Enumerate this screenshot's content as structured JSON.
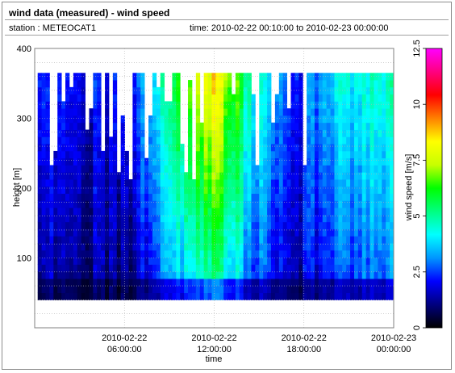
{
  "header": {
    "title": "wind data (measured) - wind speed",
    "station": "station : METEOCAT1",
    "timerange": "time: 2010-02-22 00:10:00 to 2010-02-23 00:00:00"
  },
  "chart_data": {
    "type": "heatmap",
    "xlabel": "time",
    "ylabel": "height [m]",
    "colorbar_label": "wind speed [m/s]",
    "xlim": [
      "2010-02-22 00:00:00",
      "2010-02-23 00:00:00"
    ],
    "ylim": [
      0,
      400
    ],
    "clim": [
      0,
      12.5
    ],
    "grid": true,
    "x_ticks": [
      {
        "line1": "2010-02-22",
        "line2": "06:00:00",
        "hour": 6
      },
      {
        "line1": "2010-02-22",
        "line2": "12:00:00",
        "hour": 12
      },
      {
        "line1": "2010-02-22",
        "line2": "18:00:00",
        "hour": 18
      },
      {
        "line1": "2010-02-23",
        "line2": "00:00:00",
        "hour": 24
      }
    ],
    "y_ticks": [
      100,
      200,
      300,
      400
    ],
    "colorbar_ticks": [
      "0",
      "2.5",
      "5",
      "7.5",
      "10",
      "12.5"
    ],
    "colorbar_tick_values": [
      0,
      2.5,
      5,
      7.5,
      10,
      12.5
    ],
    "data_time_range_hours": [
      0.2,
      24
    ],
    "data_height_range_m": [
      40,
      365
    ],
    "wind_speed_profile": [
      {
        "hour": 1,
        "speed_m_s": 2.0
      },
      {
        "hour": 3,
        "speed_m_s": 1.5
      },
      {
        "hour": 6,
        "speed_m_s": 1.5
      },
      {
        "hour": 8,
        "speed_m_s": 3.0
      },
      {
        "hour": 10,
        "speed_m_s": 5.0
      },
      {
        "hour": 12,
        "speed_m_s": 6.5
      },
      {
        "hour": 14,
        "speed_m_s": 4.0
      },
      {
        "hour": 17,
        "speed_m_s": 1.5
      },
      {
        "hour": 20,
        "speed_m_s": 3.0
      },
      {
        "hour": 23,
        "speed_m_s": 3.5
      }
    ],
    "colormap": [
      "#000000",
      "#00007f",
      "#0000ff",
      "#0096ff",
      "#00ffff",
      "#00ff80",
      "#00ff00",
      "#c8ff00",
      "#ffff00",
      "#ff8000",
      "#ff0000",
      "#ff0080",
      "#ff00ff"
    ]
  }
}
